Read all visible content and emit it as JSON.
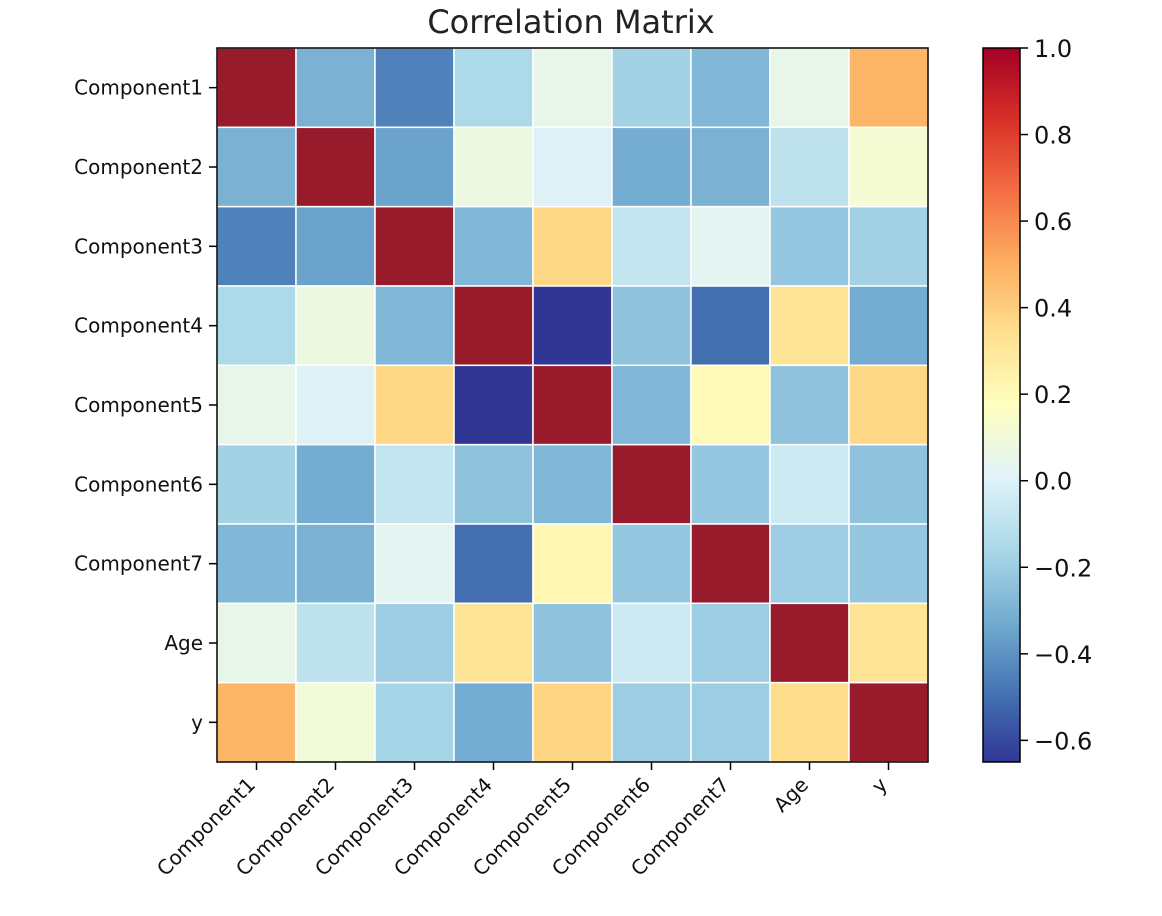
{
  "chart_data": {
    "type": "heatmap",
    "title": "Correlation Matrix",
    "labels": [
      "Component1",
      "Component2",
      "Component3",
      "Component4",
      "Component5",
      "Component6",
      "Component7",
      "Age",
      "y"
    ],
    "matrix": [
      [
        1.0,
        -0.3,
        -0.45,
        -0.15,
        0.05,
        -0.18,
        -0.28,
        0.05,
        0.48
      ],
      [
        -0.3,
        1.0,
        -0.35,
        0.08,
        0.0,
        -0.32,
        -0.3,
        -0.1,
        0.12
      ],
      [
        -0.45,
        -0.35,
        1.0,
        -0.28,
        0.37,
        -0.08,
        0.03,
        -0.22,
        -0.18
      ],
      [
        -0.15,
        0.08,
        -0.28,
        1.0,
        -0.65,
        -0.24,
        -0.5,
        0.32,
        -0.32
      ],
      [
        0.05,
        0.0,
        0.37,
        -0.65,
        1.0,
        -0.28,
        0.2,
        -0.24,
        0.37
      ],
      [
        -0.18,
        -0.32,
        -0.08,
        -0.24,
        -0.28,
        1.0,
        -0.22,
        -0.05,
        -0.24
      ],
      [
        -0.28,
        -0.3,
        0.03,
        -0.5,
        0.22,
        -0.22,
        1.0,
        -0.2,
        -0.22
      ],
      [
        0.05,
        -0.1,
        -0.2,
        0.32,
        -0.24,
        -0.05,
        -0.2,
        1.0,
        0.32
      ],
      [
        0.48,
        0.1,
        -0.17,
        -0.32,
        0.38,
        -0.2,
        -0.2,
        0.35,
        1.0
      ]
    ],
    "colorbar": {
      "min": -0.65,
      "max": 1.0,
      "ticks": [
        1.0,
        0.8,
        0.6,
        0.4,
        0.2,
        0.0,
        -0.2,
        -0.4,
        -0.6
      ],
      "tick_labels": [
        "1.0",
        "0.8",
        "0.6",
        "0.4",
        "0.2",
        "0.0",
        "−0.2",
        "−0.4",
        "−0.6"
      ]
    },
    "colormap": "RdYlBu_r",
    "colormap_stops": [
      "#313695",
      "#4575b4",
      "#74add1",
      "#abd9e9",
      "#e0f3f8",
      "#ffffbf",
      "#fee090",
      "#fdae61",
      "#f46d43",
      "#d73027",
      "#a50026"
    ],
    "cell_border_color": "#ffffff",
    "diagonal_color": "#971b2b"
  }
}
